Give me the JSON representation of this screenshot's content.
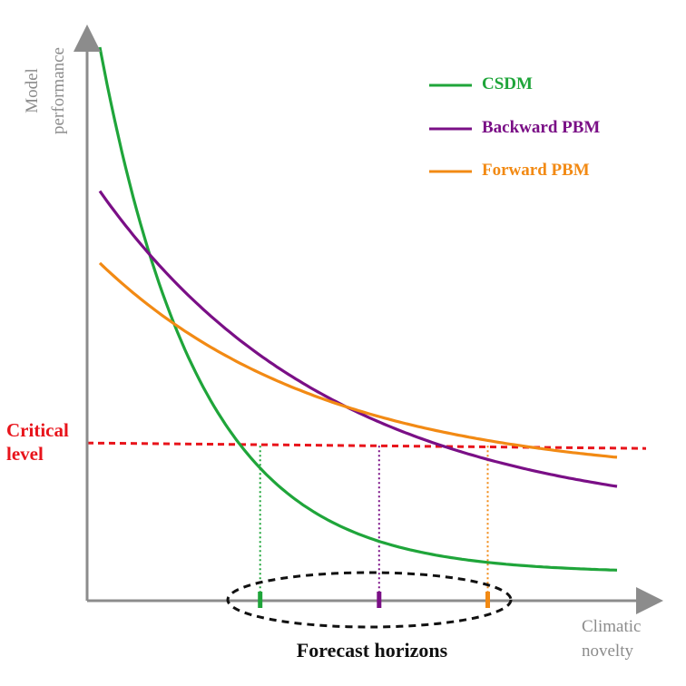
{
  "y_axis": {
    "label_line1": "Model",
    "label_line2": "performance",
    "color": "#8c8c8c"
  },
  "x_axis": {
    "label_line1": "Climatic",
    "label_line2": "novelty",
    "color": "#8c8c8c"
  },
  "critical": {
    "line1": "Critical",
    "line2": "level",
    "color": "#e8141b",
    "level": 0.28
  },
  "forecast_horizons": {
    "label": "Forecast horizons",
    "ellipse_color": "#111111"
  },
  "models": [
    {
      "id": "csdm",
      "name": "CSDM",
      "color": "#1fa53a",
      "start": 1.0,
      "floor": 0.05,
      "decay": 5.2,
      "horizon": 0.31
    },
    {
      "id": "backward",
      "name": "Backward PBM",
      "color": "#7a0f86",
      "start": 0.74,
      "floor": 0.14,
      "decay": 2.2,
      "horizon": 0.54
    },
    {
      "id": "forward",
      "name": "Forward PBM",
      "color": "#f28a14",
      "start": 0.61,
      "floor": 0.22,
      "decay": 2.3,
      "horizon": 0.75
    }
  ]
}
